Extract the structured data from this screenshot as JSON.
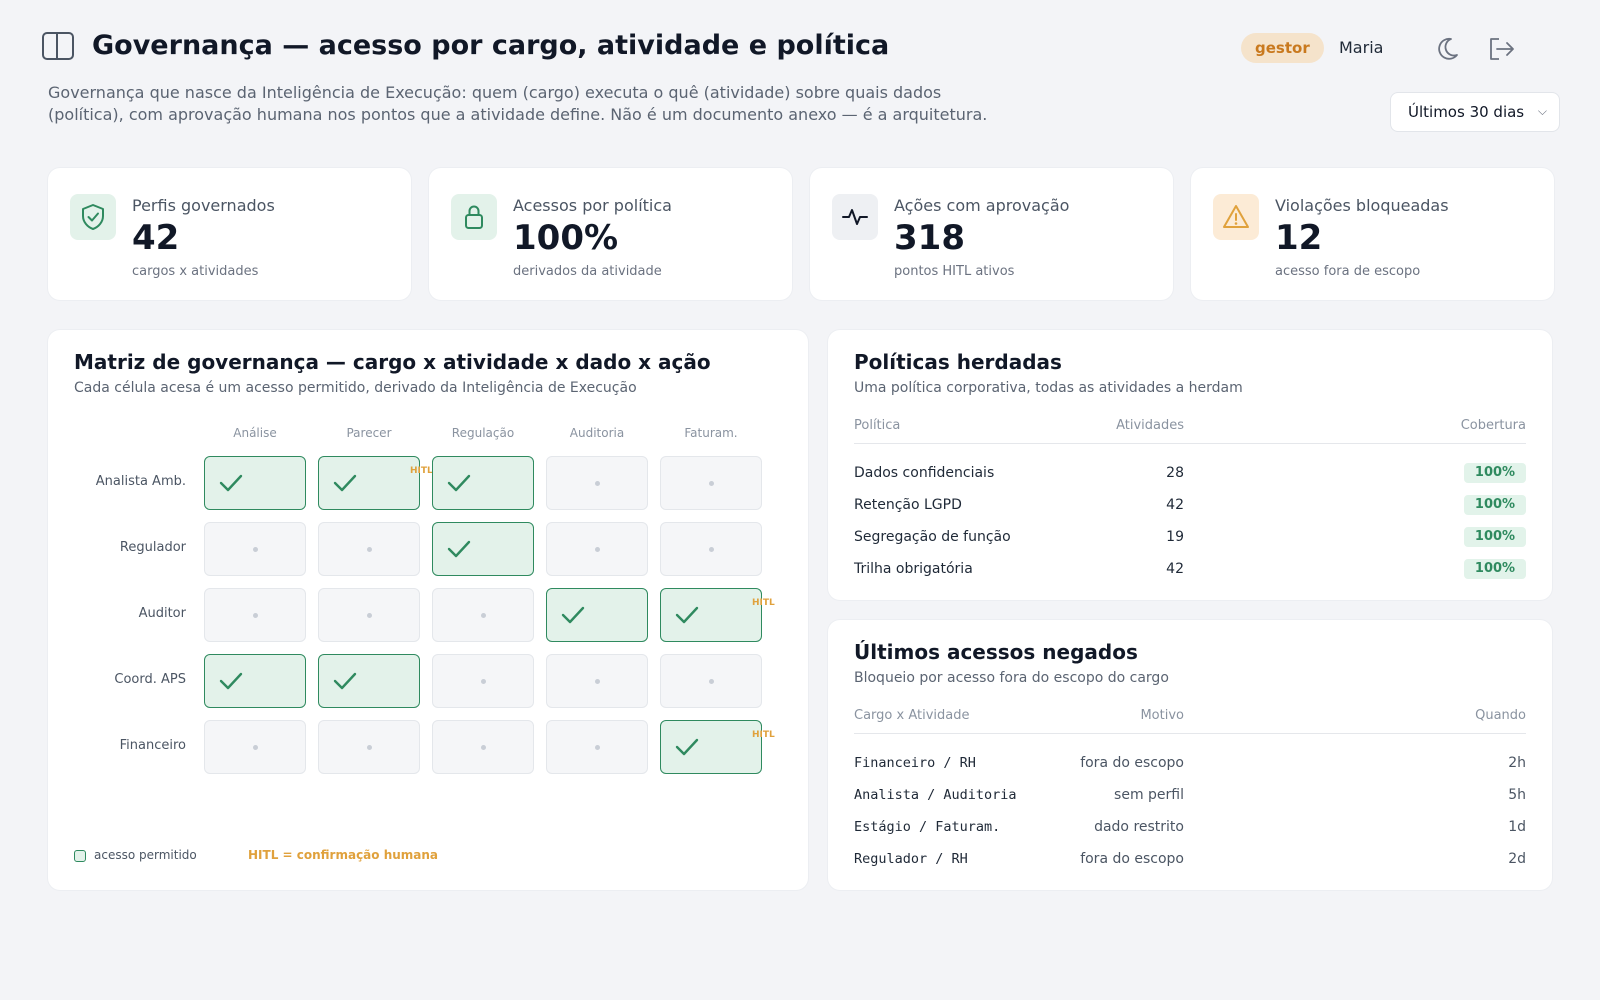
{
  "header": {
    "title": "Governança — acesso por cargo, atividade e política",
    "role_badge": "gestor",
    "user_name": "Maria",
    "subtitle_line1": "Governança que nasce da Inteligência de Execução: quem (cargo) executa o quê (atividade) sobre quais dados",
    "subtitle_line2": "(política), com aprovação humana nos pontos que a atividade define. Não é um documento anexo — é a arquitetura.",
    "period_select": "Últimos 30 dias"
  },
  "kpis": [
    {
      "label": "Perfis governados",
      "value": "42",
      "sub": "cargos x atividades",
      "icon": "shield-check-icon",
      "icon_bg": "#e3f2ea",
      "icon_color": "#2f8a5f"
    },
    {
      "label": "Acessos por política",
      "value": "100%",
      "sub": "derivados da atividade",
      "icon": "lock-icon",
      "icon_bg": "#e3f2ea",
      "icon_color": "#2f8a5f"
    },
    {
      "label": "Ações com aprovação",
      "value": "318",
      "sub": "pontos HITL ativos",
      "icon": "activity-icon",
      "icon_bg": "#eef0f3",
      "icon_color": "#111827"
    },
    {
      "label": "Violações bloqueadas",
      "value": "12",
      "sub": "acesso fora de escopo",
      "icon": "warning-icon",
      "icon_bg": "#fcebd6",
      "icon_color": "#e0a13c"
    }
  ],
  "matrix": {
    "title": "Matriz de governança — cargo x atividade x dado x ação",
    "subtitle": "Cada célula acesa é um acesso permitido, derivado da Inteligência de Execução",
    "columns": [
      "Análise",
      "Parecer",
      "Regulação",
      "Auditoria",
      "Faturam."
    ],
    "rows": [
      {
        "label": "Analista Amb.",
        "cells": [
          true,
          true,
          true,
          false,
          false
        ],
        "hitl": [
          1
        ]
      },
      {
        "label": "Regulador",
        "cells": [
          false,
          false,
          true,
          false,
          false
        ],
        "hitl": []
      },
      {
        "label": "Auditor",
        "cells": [
          false,
          false,
          false,
          true,
          true
        ],
        "hitl": [
          4
        ]
      },
      {
        "label": "Coord. APS",
        "cells": [
          true,
          true,
          false,
          false,
          false
        ],
        "hitl": []
      },
      {
        "label": "Financeiro",
        "cells": [
          false,
          false,
          false,
          false,
          true
        ],
        "hitl": [
          4
        ]
      }
    ],
    "hitl_tag": "HITL",
    "legend_allowed": "acesso permitido",
    "legend_hitl": "HITL = confirmação humana",
    "accent_color": "#2f8a5f",
    "hitl_color": "#e0a13c"
  },
  "policies": {
    "title": "Políticas herdadas",
    "subtitle": "Uma política corporativa, todas as atividades a herdam",
    "headers": [
      "Política",
      "Atividades",
      "Cobertura"
    ],
    "rows": [
      {
        "name": "Dados confidenciais",
        "activities": "28",
        "coverage": "100%"
      },
      {
        "name": "Retenção LGPD",
        "activities": "42",
        "coverage": "100%"
      },
      {
        "name": "Segregação de função",
        "activities": "19",
        "coverage": "100%"
      },
      {
        "name": "Trilha obrigatória",
        "activities": "42",
        "coverage": "100%"
      }
    ]
  },
  "denied": {
    "title": "Últimos acessos negados",
    "subtitle": "Bloqueio por acesso fora do escopo do cargo",
    "headers": [
      "Cargo x Atividade",
      "Motivo",
      "Quando"
    ],
    "rows": [
      {
        "who": "Financeiro / RH",
        "reason": "fora do escopo",
        "when": "2h"
      },
      {
        "who": "Analista / Auditoria",
        "reason": "sem perfil",
        "when": "5h"
      },
      {
        "who": "Estágio / Faturam.",
        "reason": "dado restrito",
        "when": "1d"
      },
      {
        "who": "Regulador / RH",
        "reason": "fora do escopo",
        "when": "2d"
      }
    ]
  }
}
